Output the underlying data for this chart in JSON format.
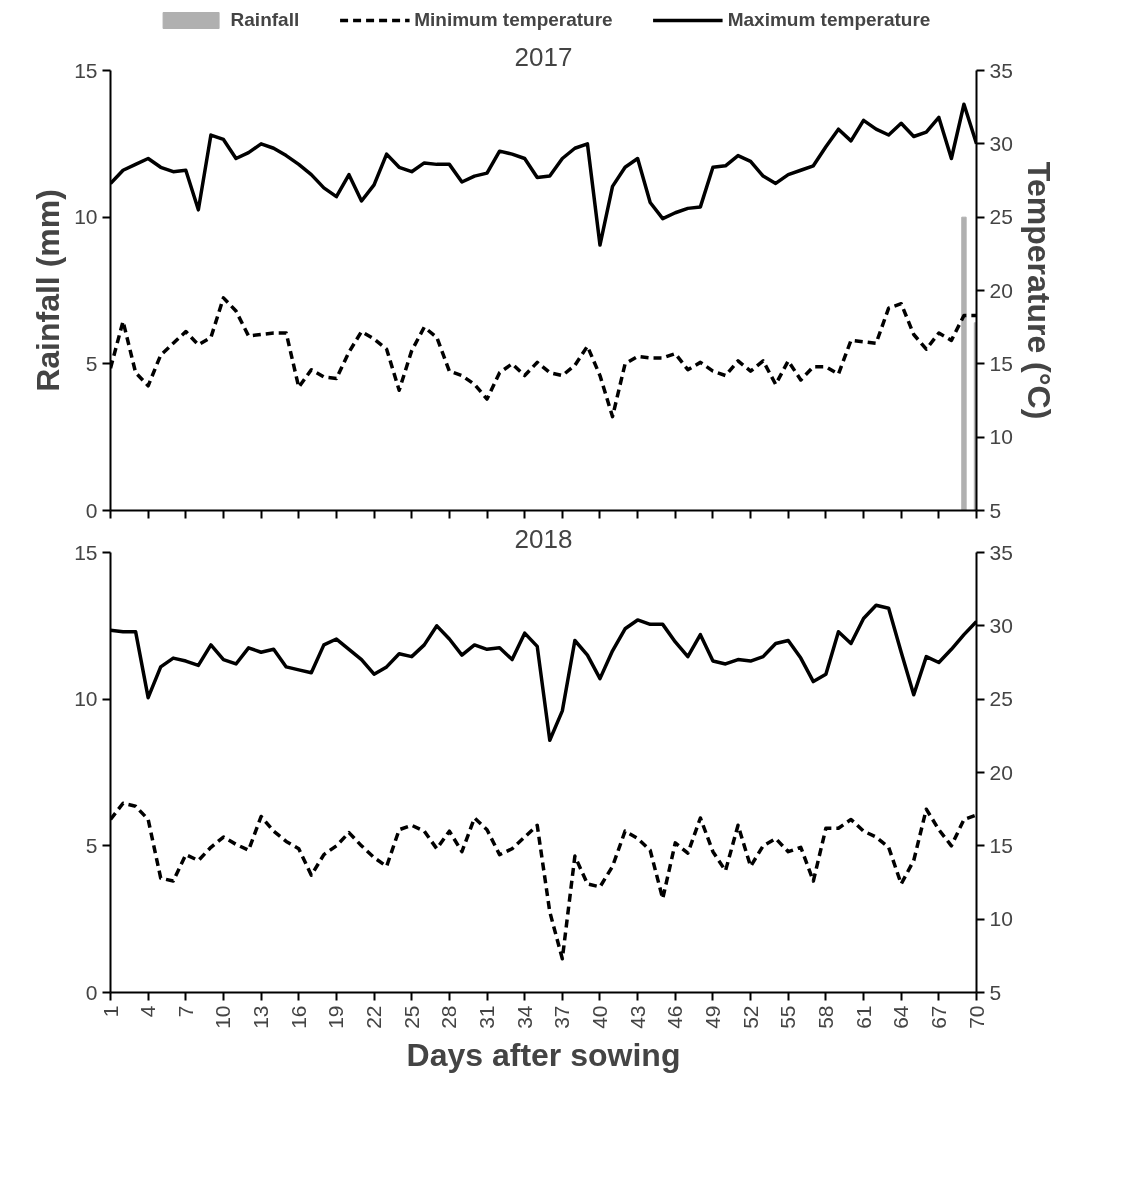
{
  "chart_data": [
    {
      "type": "line",
      "title": "2017",
      "ylabel": "Rainfall (mm)",
      "y2label": "Temperature (°C)",
      "legend": "top",
      "tick_labels": "y",
      "grid": false,
      "marker": "none",
      "x": [
        1,
        2,
        3,
        4,
        5,
        6,
        7,
        8,
        9,
        10,
        11,
        12,
        13,
        14,
        15,
        16,
        17,
        18,
        19,
        20,
        21,
        22,
        23,
        24,
        25,
        26,
        27,
        28,
        29,
        30,
        31,
        32,
        33,
        34,
        35,
        36,
        37,
        38,
        39,
        40,
        41,
        42,
        43,
        44,
        45,
        46,
        47,
        48,
        49,
        50,
        51,
        52,
        53,
        54,
        55,
        56,
        57,
        58,
        59,
        60,
        61,
        62,
        63,
        64,
        65,
        66,
        67,
        68,
        69,
        70
      ],
      "xlim": [
        1,
        70
      ],
      "xticks": [
        1,
        4,
        7,
        10,
        13,
        16,
        19,
        22,
        25,
        28,
        31,
        34,
        37,
        40,
        43,
        46,
        49,
        52,
        55,
        58,
        61,
        64,
        67,
        70
      ],
      "ylim": [
        0,
        15
      ],
      "yticks": [
        0,
        5,
        10,
        15
      ],
      "y2lim": [
        5,
        35
      ],
      "y2ticks": [
        5,
        10,
        15,
        20,
        25,
        30,
        35
      ],
      "series": [
        {
          "name": "Rainfall",
          "type": "bar",
          "color": "#b0b0b0",
          "x": [
            69,
            70
          ],
          "values": [
            10,
            6.4
          ]
        },
        {
          "name": "Minimum temperature",
          "axis": "y2",
          "line_style": "dashed",
          "color": "#000000",
          "values": [
            14.7,
            17.9,
            14.4,
            13.5,
            15.6,
            16.4,
            17.2,
            16.3,
            16.8,
            19.5,
            18.6,
            16.9,
            17.0,
            17.1,
            17.1,
            13.4,
            14.6,
            14.1,
            14.0,
            15.8,
            17.2,
            16.7,
            16.0,
            13.2,
            15.9,
            17.5,
            16.8,
            14.5,
            14.2,
            13.6,
            12.6,
            14.4,
            15.0,
            14.2,
            15.1,
            14.4,
            14.2,
            14.9,
            16.2,
            14.2,
            11.4,
            15.0,
            15.5,
            15.4,
            15.4,
            15.7,
            14.6,
            15.1,
            14.5,
            14.2,
            15.2,
            14.5,
            15.2,
            13.6,
            15.2,
            13.9,
            14.8,
            14.8,
            14.3,
            16.6,
            16.5,
            16.4,
            18.8,
            19.1,
            17.0,
            16.0,
            17.1,
            16.6,
            18.3,
            18.3
          ]
        },
        {
          "name": "Maximum temperature",
          "axis": "y2",
          "line_style": "solid",
          "color": "#000000",
          "values": [
            27.3,
            28.2,
            28.6,
            29.0,
            28.4,
            28.1,
            28.2,
            25.5,
            30.6,
            30.3,
            29.0,
            29.4,
            30.0,
            29.7,
            29.2,
            28.6,
            27.9,
            27.0,
            26.4,
            27.9,
            26.1,
            27.2,
            29.3,
            28.4,
            28.1,
            28.7,
            28.6,
            28.6,
            27.4,
            27.8,
            28.0,
            29.5,
            29.3,
            29.0,
            27.7,
            27.8,
            29.0,
            29.7,
            30.0,
            23.1,
            27.1,
            28.4,
            29.0,
            26.0,
            24.9,
            25.3,
            25.6,
            25.7,
            28.4,
            28.5,
            29.2,
            28.8,
            27.8,
            27.3,
            27.9,
            28.2,
            28.5,
            29.8,
            31.0,
            30.2,
            31.6,
            31.0,
            30.6,
            31.4,
            30.5,
            30.8,
            31.8,
            29.0,
            32.7,
            30.0
          ]
        }
      ]
    },
    {
      "type": "line",
      "title": "2018",
      "xlabel": "Days after sowing",
      "grid": false,
      "marker": "none",
      "x": [
        1,
        2,
        3,
        4,
        5,
        6,
        7,
        8,
        9,
        10,
        11,
        12,
        13,
        14,
        15,
        16,
        17,
        18,
        19,
        20,
        21,
        22,
        23,
        24,
        25,
        26,
        27,
        28,
        29,
        30,
        31,
        32,
        33,
        34,
        35,
        36,
        37,
        38,
        39,
        40,
        41,
        42,
        43,
        44,
        45,
        46,
        47,
        48,
        49,
        50,
        51,
        52,
        53,
        54,
        55,
        56,
        57,
        58,
        59,
        60,
        61,
        62,
        63,
        64,
        65,
        66,
        67,
        68,
        69,
        70
      ],
      "xlim": [
        1,
        70
      ],
      "xticks": [
        1,
        4,
        7,
        10,
        13,
        16,
        19,
        22,
        25,
        28,
        31,
        34,
        37,
        40,
        43,
        46,
        49,
        52,
        55,
        58,
        61,
        64,
        67,
        70
      ],
      "ylim": [
        0,
        15
      ],
      "yticks": [
        0,
        5,
        10,
        15
      ],
      "y2lim": [
        5,
        35
      ],
      "y2ticks": [
        5,
        10,
        15,
        20,
        25,
        30,
        35
      ],
      "series": [
        {
          "axis": "y2",
          "line_style": "dashed",
          "color": "#000000",
          "values": [
            16.8,
            17.9,
            17.7,
            16.8,
            12.8,
            12.6,
            14.4,
            14.0,
            14.9,
            15.6,
            15.1,
            14.7,
            17.0,
            16.0,
            15.3,
            14.8,
            13.0,
            14.4,
            15.0,
            15.9,
            15.0,
            14.2,
            13.6,
            16.1,
            16.4,
            16.0,
            14.8,
            16.0,
            14.6,
            16.9,
            16.1,
            14.4,
            14.8,
            15.6,
            16.4,
            10.5,
            7.3,
            14.3,
            12.4,
            12.2,
            13.6,
            16.0,
            15.5,
            14.7,
            11.4,
            15.2,
            14.5,
            16.9,
            14.6,
            13.3,
            16.4,
            13.6,
            15.0,
            15.5,
            14.6,
            14.9,
            12.6,
            16.2,
            16.2,
            16.8,
            16.0,
            15.6,
            14.9,
            12.4,
            14.0,
            17.5,
            16.1,
            15.0,
            16.8,
            17.1
          ]
        },
        {
          "axis": "y2",
          "line_style": "solid",
          "color": "#000000",
          "values": [
            29.7,
            29.6,
            29.6,
            25.1,
            27.2,
            27.8,
            27.6,
            27.3,
            28.7,
            27.7,
            27.4,
            28.5,
            28.2,
            28.4,
            27.2,
            27.0,
            26.8,
            28.7,
            29.1,
            28.4,
            27.7,
            26.7,
            27.2,
            28.1,
            27.9,
            28.7,
            30.0,
            29.1,
            28.0,
            28.7,
            28.4,
            28.5,
            27.7,
            29.5,
            28.6,
            22.2,
            24.2,
            29.0,
            28.0,
            26.4,
            28.3,
            29.8,
            30.4,
            30.1,
            30.1,
            28.9,
            27.9,
            29.4,
            27.6,
            27.4,
            27.7,
            27.6,
            27.9,
            28.8,
            29.0,
            27.8,
            26.2,
            26.7,
            29.6,
            28.8,
            30.5,
            31.4,
            31.2,
            28.2,
            25.3,
            27.9,
            27.5,
            28.4,
            29.4,
            30.3
          ]
        }
      ]
    }
  ]
}
